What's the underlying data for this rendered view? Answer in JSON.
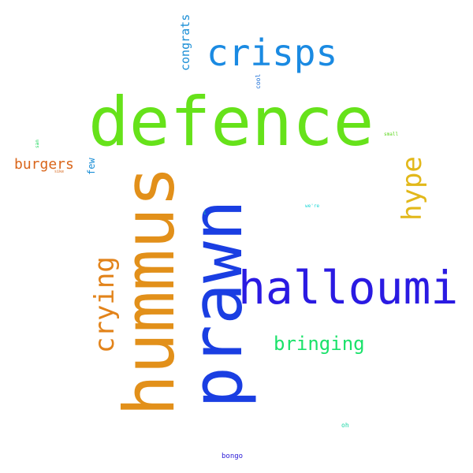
{
  "words": {
    "defence": {
      "text": "defence",
      "color": "#66e21a"
    },
    "hummus": {
      "text": "hummus",
      "color": "#e2901a"
    },
    "prawn": {
      "text": "prawn",
      "color": "#1a3ee2"
    },
    "halloumi": {
      "text": "halloumi",
      "color": "#2a1ae2"
    },
    "crisps": {
      "text": "crisps",
      "color": "#1a8ae2"
    },
    "crying": {
      "text": "crying",
      "color": "#e2831a"
    },
    "hype": {
      "text": "hype",
      "color": "#e2b81a"
    },
    "bringing": {
      "text": "bringing",
      "color": "#1ae26a"
    },
    "burgers": {
      "text": "burgers",
      "color": "#d9651a"
    },
    "congrats": {
      "text": "congrats",
      "color": "#1a8ed6"
    },
    "few": {
      "text": "few",
      "color": "#1a8ed6"
    },
    "cool": {
      "text": "cool",
      "color": "#1a6ed6"
    },
    "bongo": {
      "text": "bongo",
      "color": "#2a1ad6"
    },
    "oh": {
      "text": "oh",
      "color": "#1ad6a6"
    },
    "were": {
      "text": "we're",
      "color": "#1ad6d6"
    },
    "small": {
      "text": "small",
      "color": "#5ad61a"
    },
    "tiny_v": {
      "text": "san",
      "color": "#1ad65a"
    },
    "tiny_red": {
      "text": "sike",
      "color": "#d6651a"
    },
    "dot": {
      "text": "i",
      "color": "#1ad6a6"
    }
  }
}
